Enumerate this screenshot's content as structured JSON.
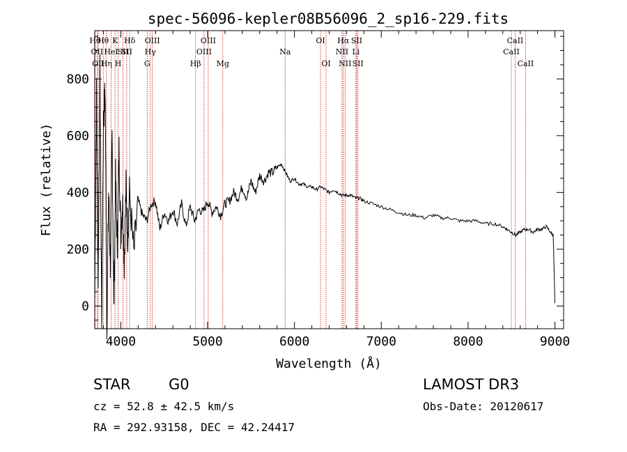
{
  "chart_data": {
    "type": "line",
    "title": "spec-56096-kepler08B56096_2_sp16-229.fits",
    "xlabel": "Wavelength (Å)",
    "ylabel": "Flux (relative)",
    "xlim": [
      3700,
      9100
    ],
    "ylim": [
      -80,
      970
    ],
    "xticks": [
      4000,
      5000,
      6000,
      7000,
      8000,
      9000
    ],
    "yticks": [
      0,
      200,
      400,
      600,
      800
    ],
    "grid": false,
    "series": [
      {
        "name": "flux",
        "x": [
          3700,
          3720,
          3740,
          3760,
          3780,
          3800,
          3820,
          3840,
          3860,
          3880,
          3900,
          3920,
          3940,
          3960,
          3980,
          4000,
          4020,
          4040,
          4060,
          4080,
          4100,
          4150,
          4200,
          4250,
          4300,
          4350,
          4400,
          4450,
          4500,
          4550,
          4600,
          4650,
          4700,
          4750,
          4800,
          4850,
          4900,
          4950,
          5000,
          5050,
          5100,
          5150,
          5200,
          5250,
          5300,
          5350,
          5400,
          5450,
          5500,
          5550,
          5600,
          5650,
          5700,
          5750,
          5800,
          5850,
          5900,
          5950,
          6000,
          6050,
          6100,
          6150,
          6200,
          6250,
          6300,
          6350,
          6400,
          6450,
          6500,
          6550,
          6600,
          6650,
          6700,
          6750,
          6800,
          6900,
          7000,
          7100,
          7200,
          7300,
          7400,
          7500,
          7600,
          7700,
          7800,
          7900,
          8000,
          8100,
          8200,
          8300,
          8400,
          8450,
          8500,
          8550,
          8600,
          8650,
          8700,
          8750,
          8800,
          8850,
          8900,
          8950,
          8980,
          9000
        ],
        "y": [
          30,
          750,
          100,
          820,
          -50,
          650,
          760,
          -60,
          400,
          150,
          600,
          -20,
          450,
          200,
          550,
          250,
          380,
          150,
          420,
          250,
          400,
          180,
          370,
          320,
          300,
          360,
          370,
          270,
          330,
          300,
          340,
          290,
          360,
          280,
          350,
          300,
          340,
          330,
          370,
          330,
          350,
          320,
          360,
          370,
          400,
          380,
          420,
          380,
          440,
          400,
          460,
          440,
          470,
          470,
          490,
          500,
          470,
          440,
          450,
          430,
          430,
          420,
          420,
          410,
          420,
          410,
          400,
          410,
          400,
          390,
          390,
          390,
          380,
          380,
          370,
          360,
          350,
          340,
          330,
          320,
          320,
          310,
          320,
          310,
          310,
          300,
          300,
          300,
          290,
          290,
          280,
          270,
          260,
          250,
          260,
          270,
          270,
          260,
          270,
          270,
          280,
          260,
          250,
          10
        ]
      }
    ],
    "lines": [
      {
        "w": 3704,
        "label": "Hθ",
        "row": 1
      },
      {
        "w": 3727,
        "label": "OII",
        "row": 2
      },
      {
        "w": 3740,
        "label": "OII",
        "row": 3
      },
      {
        "w": 3798,
        "label": "Hθ",
        "row": 1
      },
      {
        "w": 3835,
        "label": "Hη",
        "row": 3
      },
      {
        "w": 3889,
        "label": "HeI",
        "row": 2
      },
      {
        "w": 3934,
        "label": "K",
        "row": 1
      },
      {
        "w": 3969,
        "label": "H",
        "row": 3
      },
      {
        "w": 4026,
        "label": "SII",
        "row": 2
      },
      {
        "w": 4068,
        "label": "SII",
        "row": 2
      },
      {
        "w": 4102,
        "label": "Hδ",
        "row": 1
      },
      {
        "w": 4304,
        "label": "G",
        "row": 3
      },
      {
        "w": 4340,
        "label": "Hγ",
        "row": 2
      },
      {
        "w": 4363,
        "label": "OIII",
        "row": 1
      },
      {
        "w": 4861,
        "label": "Hβ",
        "row": 3
      },
      {
        "w": 4959,
        "label": "OIII",
        "row": 2
      },
      {
        "w": 5007,
        "label": "OIII",
        "row": 1
      },
      {
        "w": 5175,
        "label": "Mg",
        "row": 3
      },
      {
        "w": 5893,
        "label": "Na",
        "row": 2
      },
      {
        "w": 6300,
        "label": "OI",
        "row": 1
      },
      {
        "w": 6364,
        "label": "OI",
        "row": 3
      },
      {
        "w": 6548,
        "label": "NII",
        "row": 2
      },
      {
        "w": 6563,
        "label": "Hα",
        "row": 1
      },
      {
        "w": 6583,
        "label": "NII",
        "row": 3
      },
      {
        "w": 6708,
        "label": "Li",
        "row": 2
      },
      {
        "w": 6717,
        "label": "SII",
        "row": 1
      },
      {
        "w": 6731,
        "label": "SII",
        "row": 3
      },
      {
        "w": 8498,
        "label": "CaII",
        "row": 2
      },
      {
        "w": 8542,
        "label": "CaII",
        "row": 1
      },
      {
        "w": 8662,
        "label": "CaII",
        "row": 3
      }
    ]
  },
  "info": {
    "object_type": "STAR",
    "subclass": "G0",
    "survey": "LAMOST DR3",
    "redshift": "cz = 52.8 ± 42.5 km/s",
    "obs_date": "Obs-Date: 20120617",
    "coords": "RA = 292.93158, DEC =  42.24417"
  },
  "colors": {
    "axis": "#000000",
    "line_marker": "#cc0000",
    "spectrum": "#000000"
  }
}
